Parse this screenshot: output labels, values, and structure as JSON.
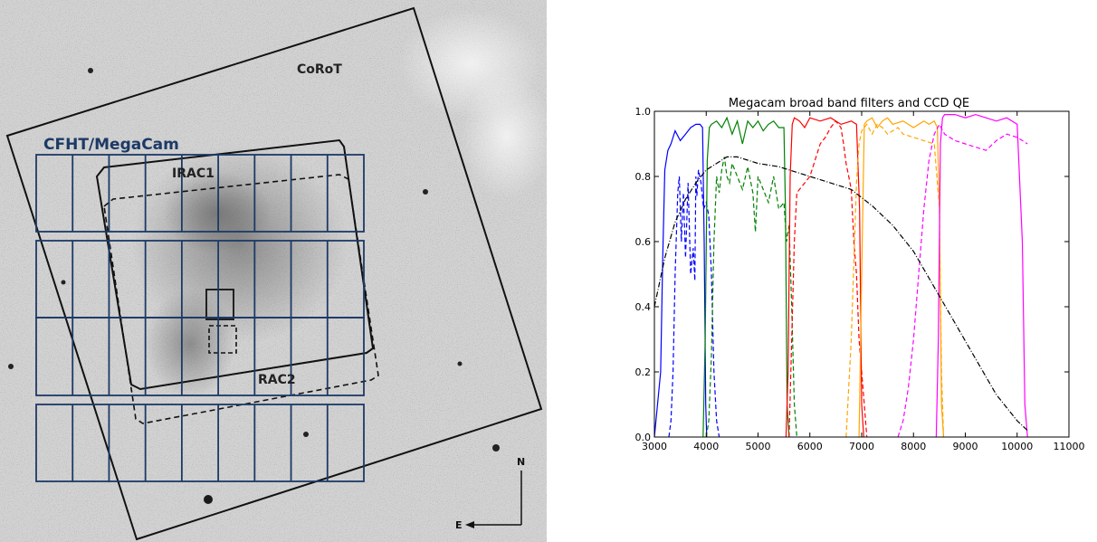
{
  "sky_image": {
    "labels": {
      "corot": "CoRoT",
      "megacam": "CFHT/MegaCam",
      "irac1": "IRAC1",
      "irac2": "RAC2",
      "north": "N",
      "east": "E"
    },
    "colors": {
      "background": "#d4d4d4",
      "megacam_grid": "#1c3a66",
      "outline": "#111111"
    }
  },
  "chart_data": {
    "type": "line",
    "title": "Megacam broad band filters and CCD QE",
    "xlabel": "",
    "ylabel": "",
    "xlim": [
      3000,
      11000
    ],
    "ylim": [
      0.0,
      1.0
    ],
    "xticks": [
      "3000",
      "4000",
      "5000",
      "6000",
      "7000",
      "8000",
      "9000",
      "10000",
      "11000"
    ],
    "yticks": [
      "0.0",
      "0.2",
      "0.4",
      "0.6",
      "0.8",
      "1.0"
    ],
    "series": [
      {
        "color": "#0000ff",
        "style": "solid",
        "x": [
          3000,
          3120,
          3160,
          3200,
          3260,
          3320,
          3400,
          3500,
          3600,
          3700,
          3800,
          3880,
          3930,
          3960,
          3990,
          4010
        ],
        "y": [
          0.0,
          0.2,
          0.55,
          0.82,
          0.88,
          0.9,
          0.94,
          0.91,
          0.93,
          0.95,
          0.96,
          0.96,
          0.95,
          0.6,
          0.1,
          0.0
        ]
      },
      {
        "color": "#0000ff",
        "style": "dashed",
        "x": [
          3280,
          3320,
          3360,
          3400,
          3450,
          3480,
          3520,
          3560,
          3600,
          3650,
          3700,
          3750,
          3780,
          3800,
          3820,
          3850,
          3900,
          3950,
          4000,
          4050,
          4100,
          4150,
          4200,
          4250
        ],
        "y": [
          0.0,
          0.05,
          0.2,
          0.5,
          0.75,
          0.8,
          0.6,
          0.75,
          0.55,
          0.78,
          0.5,
          0.58,
          0.48,
          0.8,
          0.74,
          0.82,
          0.78,
          0.7,
          0.72,
          0.68,
          0.5,
          0.2,
          0.05,
          0.0
        ]
      },
      {
        "color": "#008000",
        "style": "solid",
        "x": [
          3940,
          3980,
          4020,
          4060,
          4100,
          4200,
          4300,
          4400,
          4500,
          4600,
          4700,
          4800,
          4900,
          5000,
          5100,
          5200,
          5300,
          5400,
          5500,
          5530,
          5560,
          5600
        ],
        "y": [
          0.0,
          0.3,
          0.85,
          0.95,
          0.96,
          0.97,
          0.95,
          0.98,
          0.93,
          0.97,
          0.9,
          0.97,
          0.95,
          0.97,
          0.94,
          0.96,
          0.97,
          0.95,
          0.95,
          0.7,
          0.1,
          0.0
        ]
      },
      {
        "color": "#008000",
        "style": "dashed",
        "x": [
          4000,
          4050,
          4100,
          4150,
          4200,
          4250,
          4300,
          4350,
          4400,
          4450,
          4500,
          4600,
          4700,
          4800,
          4900,
          4950,
          5000,
          5100,
          5200,
          5300,
          5400,
          5500,
          5550,
          5600,
          5650,
          5700,
          5750
        ],
        "y": [
          0.0,
          0.05,
          0.25,
          0.6,
          0.8,
          0.75,
          0.82,
          0.86,
          0.8,
          0.78,
          0.84,
          0.8,
          0.76,
          0.83,
          0.75,
          0.63,
          0.8,
          0.76,
          0.72,
          0.8,
          0.7,
          0.72,
          0.6,
          0.65,
          0.4,
          0.1,
          0.0
        ]
      },
      {
        "color": "#ff0000",
        "style": "solid",
        "x": [
          5540,
          5580,
          5620,
          5660,
          5700,
          5800,
          5900,
          6000,
          6200,
          6400,
          6600,
          6800,
          6900,
          6960,
          7000,
          7040
        ],
        "y": [
          0.0,
          0.2,
          0.8,
          0.96,
          0.98,
          0.97,
          0.95,
          0.98,
          0.97,
          0.98,
          0.96,
          0.97,
          0.96,
          0.7,
          0.1,
          0.0
        ]
      },
      {
        "color": "#ff0000",
        "style": "dashed",
        "x": [
          5600,
          5650,
          5700,
          5750,
          5800,
          5900,
          6000,
          6100,
          6200,
          6300,
          6400,
          6500,
          6600,
          6650,
          6700,
          6750,
          6800,
          6850,
          6900,
          6950,
          7000,
          7050,
          7100
        ],
        "y": [
          0.0,
          0.3,
          0.6,
          0.75,
          0.76,
          0.78,
          0.8,
          0.85,
          0.9,
          0.92,
          0.95,
          0.97,
          0.95,
          0.9,
          0.84,
          0.8,
          0.76,
          0.6,
          0.5,
          0.3,
          0.2,
          0.1,
          0.0
        ]
      },
      {
        "color": "#ffa500",
        "style": "solid",
        "x": [
          6950,
          7000,
          7050,
          7100,
          7200,
          7300,
          7400,
          7500,
          7600,
          7800,
          8000,
          8200,
          8300,
          8400,
          8460,
          8500,
          8540,
          8580
        ],
        "y": [
          0.0,
          0.5,
          0.96,
          0.97,
          0.98,
          0.95,
          0.97,
          0.98,
          0.96,
          0.97,
          0.95,
          0.97,
          0.96,
          0.97,
          0.95,
          0.7,
          0.1,
          0.0
        ]
      },
      {
        "color": "#ffa500",
        "style": "dashed",
        "x": [
          6700,
          6800,
          6900,
          6950,
          7000,
          7100,
          7200,
          7300,
          7400,
          7500,
          7600,
          7700,
          7800,
          8000,
          8200,
          8400,
          8500,
          8540,
          8580
        ],
        "y": [
          0.0,
          0.3,
          0.78,
          0.9,
          0.94,
          0.96,
          0.93,
          0.96,
          0.95,
          0.93,
          0.94,
          0.95,
          0.93,
          0.92,
          0.91,
          0.9,
          0.7,
          0.2,
          0.0
        ]
      },
      {
        "color": "#ff00ff",
        "style": "solid",
        "x": [
          8440,
          8480,
          8520,
          8560,
          8600,
          8800,
          9000,
          9200,
          9400,
          9600,
          9800,
          10000,
          10100,
          10150,
          10200
        ],
        "y": [
          0.0,
          0.3,
          0.9,
          0.98,
          0.99,
          0.99,
          0.98,
          0.99,
          0.98,
          0.97,
          0.98,
          0.96,
          0.6,
          0.1,
          0.0
        ]
      },
      {
        "color": "#ff00ff",
        "style": "dashed",
        "x": [
          7700,
          7800,
          7900,
          8000,
          8100,
          8200,
          8300,
          8400,
          8500,
          8600,
          8800,
          9000,
          9200,
          9400,
          9600,
          9800,
          10000,
          10200
        ],
        "y": [
          0.0,
          0.05,
          0.15,
          0.3,
          0.5,
          0.7,
          0.85,
          0.93,
          0.96,
          0.93,
          0.91,
          0.9,
          0.89,
          0.88,
          0.91,
          0.93,
          0.92,
          0.9
        ]
      },
      {
        "color": "#000000",
        "style": "dashdot",
        "x": [
          3000,
          3200,
          3400,
          3600,
          3800,
          4000,
          4200,
          4400,
          4600,
          4800,
          5000,
          5400,
          6000,
          6400,
          6800,
          7200,
          7600,
          8000,
          8400,
          8800,
          9200,
          9600,
          10000,
          10200
        ],
        "y": [
          0.4,
          0.55,
          0.66,
          0.73,
          0.78,
          0.82,
          0.84,
          0.86,
          0.86,
          0.85,
          0.84,
          0.83,
          0.8,
          0.78,
          0.76,
          0.71,
          0.65,
          0.57,
          0.46,
          0.35,
          0.24,
          0.13,
          0.05,
          0.02
        ]
      }
    ]
  }
}
